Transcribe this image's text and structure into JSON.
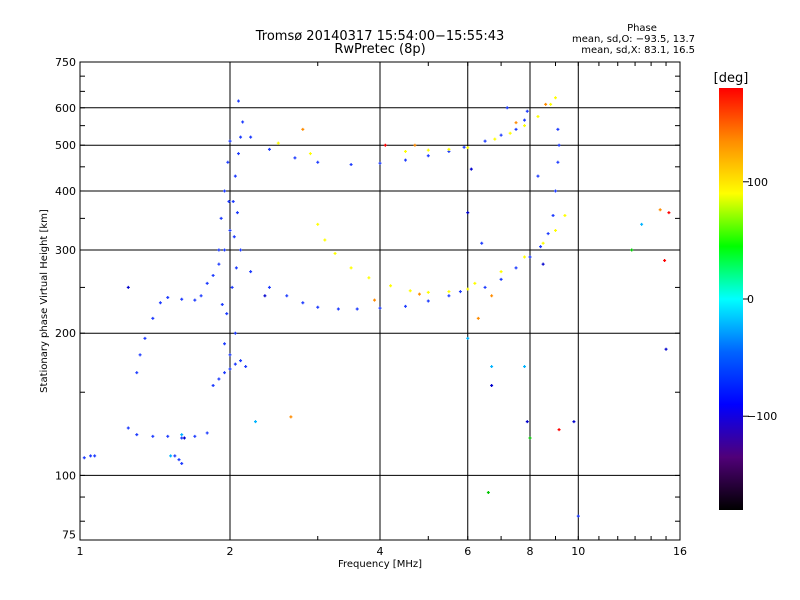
{
  "chart_data": {
    "type": "scatter",
    "title": "Tromsø 20140317 15:54:00−15:55:43",
    "subtitle": "RwPretec (8p)",
    "xlabel": "Frequency [MHz]",
    "ylabel": "Stationary phase Virtual Height [km]",
    "x_scale": "log",
    "y_scale": "log",
    "xlim": [
      1,
      16
    ],
    "ylim": [
      73,
      750
    ],
    "x_ticks": [
      1,
      2,
      4,
      6,
      8,
      10,
      16
    ],
    "x_tick_labels": [
      "1",
      "2",
      "4",
      "6",
      "8",
      "10",
      "16"
    ],
    "y_ticks": [
      75,
      100,
      200,
      300,
      400,
      500,
      600,
      750
    ],
    "y_tick_labels": [
      "75",
      "100",
      "200",
      "300",
      "400",
      "500",
      "600",
      "750"
    ],
    "grid": true,
    "phase_stats": {
      "heading": "Phase",
      "line_o": "mean, sd,O: −93.5, 13.7",
      "line_x": "mean, sd,X:  83.1, 16.5"
    },
    "colorbar": {
      "label": "[deg]",
      "range": [
        -180,
        180
      ],
      "ticks": [
        100,
        0,
        -100
      ],
      "tick_labels": [
        "100",
        "0",
        "−100"
      ],
      "colors": [
        "#ff0000",
        "#ff8c00",
        "#ffff00",
        "#00ff00",
        "#00ffff",
        "#0064ff",
        "#0000ff",
        "#500078",
        "#000000"
      ]
    },
    "series": [
      {
        "color": "#1e3cff",
        "points": [
          [
            1.02,
            109
          ],
          [
            1.05,
            110
          ],
          [
            1.07,
            110
          ],
          [
            1.25,
            126
          ],
          [
            1.3,
            122
          ],
          [
            1.4,
            121
          ],
          [
            1.5,
            121
          ],
          [
            1.6,
            120
          ],
          [
            1.7,
            121
          ],
          [
            1.8,
            123
          ],
          [
            1.55,
            110
          ],
          [
            1.58,
            108
          ],
          [
            1.6,
            106
          ],
          [
            1.3,
            165
          ],
          [
            1.32,
            180
          ],
          [
            1.35,
            195
          ],
          [
            1.4,
            215
          ],
          [
            1.45,
            232
          ],
          [
            1.5,
            238
          ],
          [
            1.6,
            236
          ],
          [
            1.7,
            235
          ],
          [
            1.75,
            240
          ],
          [
            1.8,
            255
          ],
          [
            1.85,
            265
          ],
          [
            1.9,
            280
          ],
          [
            1.95,
            300
          ],
          [
            2.0,
            330
          ],
          [
            2.03,
            380
          ],
          [
            2.05,
            430
          ],
          [
            2.08,
            480
          ],
          [
            2.1,
            520
          ],
          [
            2.12,
            560
          ],
          [
            2.08,
            620
          ],
          [
            2.0,
            510
          ],
          [
            1.98,
            460
          ],
          [
            1.9,
            300
          ],
          [
            1.92,
            350
          ],
          [
            1.95,
            400
          ],
          [
            2.02,
            250
          ],
          [
            2.06,
            275
          ],
          [
            1.93,
            230
          ],
          [
            1.97,
            220
          ],
          [
            2.04,
            320
          ],
          [
            2.07,
            360
          ],
          [
            1.99,
            380
          ],
          [
            2.1,
            300
          ],
          [
            2.2,
            270
          ],
          [
            2.4,
            250
          ],
          [
            2.6,
            240
          ],
          [
            2.8,
            232
          ],
          [
            3.0,
            227
          ],
          [
            3.3,
            225
          ],
          [
            3.6,
            225
          ],
          [
            4.0,
            226
          ],
          [
            4.5,
            228
          ],
          [
            5.0,
            234
          ],
          [
            5.5,
            240
          ],
          [
            5.8,
            245
          ],
          [
            2.2,
            520
          ],
          [
            2.4,
            490
          ],
          [
            2.7,
            470
          ],
          [
            3.0,
            460
          ],
          [
            3.5,
            455
          ],
          [
            4.0,
            458
          ],
          [
            4.5,
            465
          ],
          [
            5.0,
            475
          ],
          [
            5.5,
            485
          ],
          [
            5.9,
            495
          ],
          [
            1.85,
            155
          ],
          [
            1.9,
            160
          ],
          [
            1.95,
            165
          ],
          [
            2.0,
            168
          ],
          [
            2.05,
            172
          ],
          [
            2.1,
            175
          ],
          [
            2.15,
            170
          ],
          [
            1.95,
            190
          ],
          [
            2.05,
            200
          ],
          [
            2.0,
            180
          ],
          [
            6.5,
            250
          ],
          [
            7.0,
            260
          ],
          [
            7.5,
            275
          ],
          [
            8.0,
            290
          ],
          [
            8.4,
            305
          ],
          [
            8.7,
            325
          ],
          [
            8.9,
            355
          ],
          [
            9.0,
            400
          ],
          [
            9.1,
            460
          ],
          [
            9.15,
            500
          ],
          [
            9.1,
            540
          ],
          [
            6.5,
            510
          ],
          [
            7.0,
            525
          ],
          [
            7.5,
            540
          ],
          [
            7.8,
            565
          ],
          [
            7.9,
            590
          ],
          [
            10.0,
            82
          ],
          [
            8.3,
            430
          ],
          [
            7.2,
            600
          ],
          [
            6.4,
            310
          ]
        ]
      },
      {
        "color": "#ffff00",
        "points": [
          [
            3.0,
            340
          ],
          [
            3.1,
            315
          ],
          [
            3.25,
            295
          ],
          [
            3.5,
            275
          ],
          [
            3.8,
            262
          ],
          [
            4.2,
            252
          ],
          [
            4.6,
            246
          ],
          [
            5.0,
            244
          ],
          [
            5.5,
            245
          ],
          [
            6.0,
            248
          ],
          [
            6.2,
            255
          ],
          [
            7.0,
            270
          ],
          [
            7.8,
            290
          ],
          [
            8.5,
            310
          ],
          [
            9.0,
            330
          ],
          [
            9.4,
            355
          ],
          [
            4.5,
            485
          ],
          [
            5.0,
            488
          ],
          [
            5.5,
            490
          ],
          [
            6.0,
            494
          ],
          [
            6.8,
            515
          ],
          [
            7.3,
            530
          ],
          [
            7.8,
            550
          ],
          [
            8.3,
            575
          ],
          [
            8.8,
            610
          ],
          [
            9.0,
            630
          ],
          [
            2.9,
            480
          ],
          [
            2.5,
            505
          ]
        ]
      },
      {
        "color": "#ff8c00",
        "points": [
          [
            2.65,
            133
          ],
          [
            3.9,
            235
          ],
          [
            4.8,
            242
          ],
          [
            6.7,
            240
          ],
          [
            7.5,
            558
          ],
          [
            8.6,
            610
          ],
          [
            6.3,
            215
          ],
          [
            14.6,
            365
          ],
          [
            2.8,
            540
          ],
          [
            4.7,
            500
          ]
        ]
      },
      {
        "color": "#0000cd",
        "points": [
          [
            1.25,
            250
          ],
          [
            1.62,
            120
          ],
          [
            2.35,
            240
          ],
          [
            6.0,
            360
          ],
          [
            6.1,
            445
          ],
          [
            6.7,
            155
          ],
          [
            7.9,
            130
          ],
          [
            8.5,
            280
          ],
          [
            9.8,
            130
          ],
          [
            15.0,
            185
          ]
        ]
      },
      {
        "color": "#00b4ff",
        "points": [
          [
            1.52,
            110
          ],
          [
            1.6,
            122
          ],
          [
            2.25,
            130
          ],
          [
            6.0,
            195
          ],
          [
            6.7,
            170
          ],
          [
            7.8,
            170
          ],
          [
            13.4,
            340
          ]
        ]
      },
      {
        "color": "#ff0000",
        "points": [
          [
            14.9,
            285
          ],
          [
            15.2,
            360
          ],
          [
            9.15,
            125
          ],
          [
            4.1,
            500
          ]
        ]
      },
      {
        "color": "#00c800",
        "points": [
          [
            6.6,
            92
          ],
          [
            8.0,
            120
          ],
          [
            12.8,
            300
          ]
        ]
      }
    ]
  }
}
